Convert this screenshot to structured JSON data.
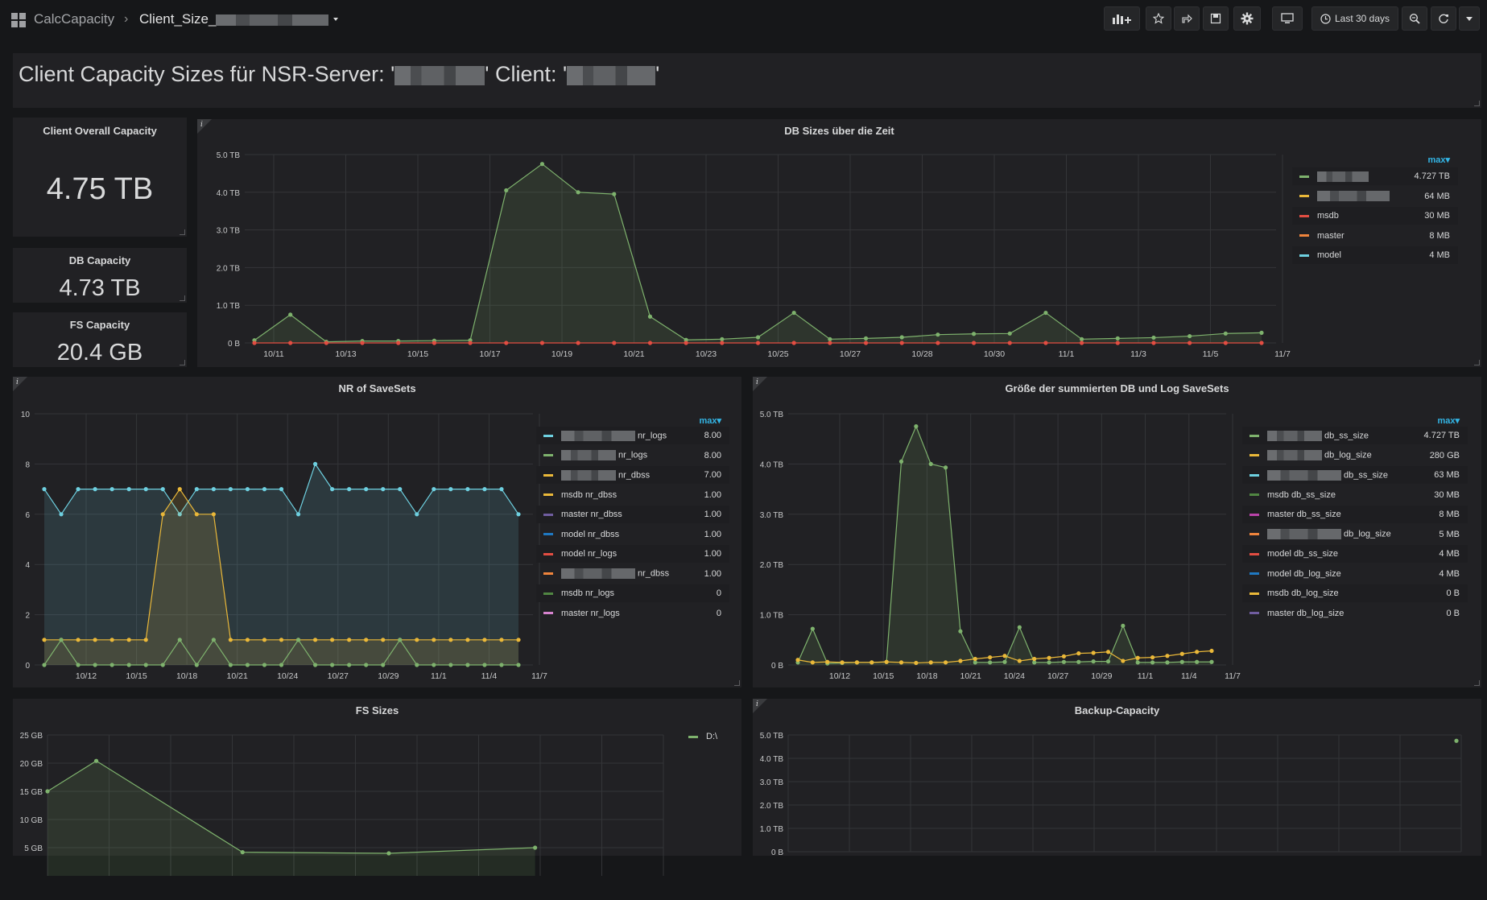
{
  "nav": {
    "parent": "CalcCapacity",
    "separator": "›",
    "current_prefix": "Client_Size_",
    "time_range": "Last 30 days"
  },
  "header": {
    "title_a": "Client Capacity Sizes für NSR-Server: '",
    "title_b": "' Client: '",
    "title_c": "'"
  },
  "stats": [
    {
      "title": "Client Overall Capacity",
      "value": "4.75 TB"
    },
    {
      "title": "DB Capacity",
      "value": "4.73 TB"
    },
    {
      "title": "FS Capacity",
      "value": "20.4 GB"
    }
  ],
  "panels": {
    "info_glyph": "i",
    "legend_sort": "max▾",
    "db_sizes": {
      "title": "DB Sizes über die Zeit",
      "legend": [
        {
          "name": "",
          "value": "4.727 TB",
          "color": "#7eb26d",
          "redacted_w": 64
        },
        {
          "name": "",
          "value": "64 MB",
          "color": "#eab839",
          "redacted_w": 90
        },
        {
          "name": "msdb",
          "value": "30 MB",
          "color": "#e24d42",
          "redacted_w": 0
        },
        {
          "name": "master",
          "value": "8 MB",
          "color": "#ef843c",
          "redacted_w": 0
        },
        {
          "name": "model",
          "value": "4 MB",
          "color": "#6ed0e0",
          "redacted_w": 0
        }
      ]
    },
    "nr_savesets": {
      "title": "NR of SaveSets",
      "legend": [
        {
          "name": "nr_logs",
          "value": "8.00",
          "color": "#6ed0e0",
          "redacted_w": 92
        },
        {
          "name": "nr_logs",
          "value": "8.00",
          "color": "#7eb26d",
          "redacted_w": 68
        },
        {
          "name": "nr_dbss",
          "value": "7.00",
          "color": "#eab839",
          "redacted_w": 68
        },
        {
          "name": "msdb nr_dbss",
          "value": "1.00",
          "color": "#eab839",
          "redacted_w": 0
        },
        {
          "name": "master nr_dbss",
          "value": "1.00",
          "color": "#705da0",
          "redacted_w": 0
        },
        {
          "name": "model nr_dbss",
          "value": "1.00",
          "color": "#1f78c1",
          "redacted_w": 0
        },
        {
          "name": "model nr_logs",
          "value": "1.00",
          "color": "#e24d42",
          "redacted_w": 0
        },
        {
          "name": "nr_dbss",
          "value": "1.00",
          "color": "#ef843c",
          "redacted_w": 92
        },
        {
          "name": "msdb nr_logs",
          "value": "0",
          "color": "#508642",
          "redacted_w": 0
        },
        {
          "name": "master nr_logs",
          "value": "0",
          "color": "#d683ce",
          "redacted_w": 0
        }
      ]
    },
    "summed": {
      "title": "Größe der summierten DB und Log SaveSets",
      "legend": [
        {
          "name": "db_ss_size",
          "value": "4.727 TB",
          "color": "#7eb26d",
          "redacted_w": 68
        },
        {
          "name": "db_log_size",
          "value": "280 GB",
          "color": "#eab839",
          "redacted_w": 68
        },
        {
          "name": "db_ss_size",
          "value": "63 MB",
          "color": "#6ed0e0",
          "redacted_w": 92
        },
        {
          "name": "msdb db_ss_size",
          "value": "30 MB",
          "color": "#508642",
          "redacted_w": 0
        },
        {
          "name": "master db_ss_size",
          "value": "8 MB",
          "color": "#ba43a9",
          "redacted_w": 0
        },
        {
          "name": "db_log_size",
          "value": "5 MB",
          "color": "#ef843c",
          "redacted_w": 92
        },
        {
          "name": "model db_ss_size",
          "value": "4 MB",
          "color": "#e24d42",
          "redacted_w": 0
        },
        {
          "name": "model db_log_size",
          "value": "4 MB",
          "color": "#1f78c1",
          "redacted_w": 0
        },
        {
          "name": "msdb db_log_size",
          "value": "0 B",
          "color": "#eab839",
          "redacted_w": 0
        },
        {
          "name": "master db_log_size",
          "value": "0 B",
          "color": "#705da0",
          "redacted_w": 0
        }
      ]
    },
    "fs_sizes": {
      "title": "FS Sizes",
      "legend": [
        {
          "name": "D:\\",
          "value": "",
          "color": "#7eb26d",
          "redacted_w": 0
        }
      ]
    },
    "backup_capacity": {
      "title": "Backup-Capacity"
    }
  },
  "chart_data": [
    {
      "type": "line",
      "title": "DB Sizes über die Zeit",
      "xlabel": "",
      "ylabel": "",
      "ylim": [
        0,
        5
      ],
      "unit": "TB",
      "y_ticks": [
        "0 B",
        "1.0 TB",
        "2.0 TB",
        "3.0 TB",
        "4.0 TB",
        "5.0 TB"
      ],
      "x_ticks": [
        "10/11",
        "10/13",
        "10/15",
        "10/17",
        "10/19",
        "10/21",
        "10/23",
        "10/25",
        "10/27",
        "10/28",
        "10/30",
        "11/1",
        "11/3",
        "11/5",
        "11/7"
      ],
      "series": [
        {
          "color": "#7eb26d",
          "values": [
            0.07,
            0.75,
            0.03,
            0.05,
            0.05,
            0.06,
            0.07,
            4.05,
            4.75,
            4.0,
            3.95,
            0.7,
            0.08,
            0.1,
            0.15,
            0.8,
            0.1,
            0.12,
            0.15,
            0.22,
            0.24,
            0.25,
            0.8,
            0.1,
            0.12,
            0.14,
            0.18,
            0.25,
            0.27
          ],
          "fill": true
        },
        {
          "name": "msdb",
          "color": "#e24d42",
          "values": [
            0,
            0,
            0,
            0,
            0,
            0,
            0,
            0,
            0,
            0,
            0,
            0,
            0,
            0,
            0,
            0,
            0,
            0,
            0,
            0,
            0,
            0,
            0,
            0,
            0,
            0,
            0,
            0,
            0
          ]
        }
      ]
    },
    {
      "type": "line",
      "title": "NR of SaveSets",
      "ylim": [
        0,
        10
      ],
      "y_ticks": [
        "0",
        "2",
        "4",
        "6",
        "8",
        "10"
      ],
      "x_ticks": [
        "10/12",
        "10/15",
        "10/18",
        "10/21",
        "10/24",
        "10/27",
        "10/29",
        "11/1",
        "11/4",
        "11/7"
      ],
      "series": [
        {
          "color": "#6ed0e0",
          "values": [
            7,
            6,
            7,
            7,
            7,
            7,
            7,
            7,
            6,
            7,
            7,
            7,
            7,
            7,
            7,
            6,
            8,
            7,
            7,
            7,
            7,
            7,
            6,
            7,
            7,
            7,
            7,
            7,
            6
          ],
          "fill": true
        },
        {
          "color": "#eab839",
          "values": [
            1,
            1,
            1,
            1,
            1,
            1,
            1,
            6,
            7,
            6,
            6,
            1,
            1,
            1,
            1,
            1,
            1,
            1,
            1,
            1,
            1,
            1,
            1,
            1,
            1,
            1,
            1,
            1,
            1
          ],
          "fill": true
        },
        {
          "color": "#7eb26d",
          "values": [
            0,
            1,
            0,
            0,
            0,
            0,
            0,
            0,
            1,
            0,
            1,
            0,
            0,
            0,
            0,
            1,
            0,
            0,
            0,
            0,
            0,
            1,
            0,
            0,
            0,
            0,
            0,
            0,
            0
          ]
        }
      ]
    },
    {
      "type": "line",
      "title": "Größe der summierten DB und Log SaveSets",
      "ylim": [
        0,
        5
      ],
      "unit": "TB",
      "y_ticks": [
        "0 B",
        "1.0 TB",
        "2.0 TB",
        "3.0 TB",
        "4.0 TB",
        "5.0 TB"
      ],
      "x_ticks": [
        "10/12",
        "10/15",
        "10/18",
        "10/21",
        "10/24",
        "10/27",
        "10/29",
        "11/1",
        "11/4",
        "11/7"
      ],
      "series": [
        {
          "color": "#7eb26d",
          "values": [
            0.05,
            0.72,
            0.03,
            0.04,
            0.05,
            0.05,
            0.06,
            4.05,
            4.75,
            4.0,
            3.93,
            0.67,
            0.05,
            0.05,
            0.06,
            0.75,
            0.05,
            0.05,
            0.06,
            0.06,
            0.07,
            0.07,
            0.78,
            0.05,
            0.05,
            0.05,
            0.06,
            0.06,
            0.06
          ],
          "fill": true
        },
        {
          "color": "#eab839",
          "values": [
            0.1,
            0.05,
            0.06,
            0.05,
            0.05,
            0.05,
            0.06,
            0.05,
            0.04,
            0.05,
            0.05,
            0.08,
            0.12,
            0.15,
            0.18,
            0.08,
            0.12,
            0.14,
            0.17,
            0.23,
            0.24,
            0.26,
            0.08,
            0.14,
            0.15,
            0.18,
            0.22,
            0.26,
            0.28
          ]
        }
      ]
    },
    {
      "type": "line",
      "title": "FS Sizes",
      "ylim": [
        0,
        25
      ],
      "unit": "GB",
      "y_ticks": [
        "5 GB",
        "10 GB",
        "15 GB",
        "20 GB",
        "25 GB"
      ],
      "series": [
        {
          "name": "D:\\",
          "color": "#7eb26d",
          "x": [
            0,
            1,
            4,
            7,
            10
          ],
          "values": [
            15,
            20.4,
            4.2,
            4.0,
            5.0
          ],
          "fill": true
        }
      ]
    },
    {
      "type": "line",
      "title": "Backup-Capacity",
      "ylim": [
        0,
        5
      ],
      "unit": "TB",
      "y_ticks": [
        "0 B",
        "1.0 TB",
        "2.0 TB",
        "3.0 TB",
        "4.0 TB",
        "5.0 TB"
      ],
      "series": [
        {
          "color": "#7eb26d",
          "values": [
            4.75
          ]
        }
      ]
    }
  ]
}
